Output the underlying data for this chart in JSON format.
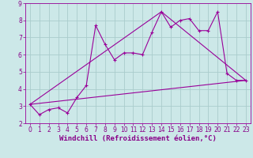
{
  "background_color": "#cce8e8",
  "grid_color": "#aacccc",
  "line_color": "#990099",
  "xlabel": "Windchill (Refroidissement éolien,°C)",
  "xlim": [
    -0.5,
    23.5
  ],
  "ylim": [
    2,
    9
  ],
  "yticks": [
    2,
    3,
    4,
    5,
    6,
    7,
    8,
    9
  ],
  "xticks": [
    0,
    1,
    2,
    3,
    4,
    5,
    6,
    7,
    8,
    9,
    10,
    11,
    12,
    13,
    14,
    15,
    16,
    17,
    18,
    19,
    20,
    21,
    22,
    23
  ],
  "main_line_x": [
    0,
    1,
    2,
    3,
    4,
    5,
    6,
    7,
    8,
    9,
    10,
    11,
    12,
    13,
    14,
    15,
    16,
    17,
    18,
    19,
    20,
    21,
    22,
    23
  ],
  "main_line_y": [
    3.1,
    2.5,
    2.8,
    2.9,
    2.6,
    3.5,
    4.2,
    7.7,
    6.6,
    5.7,
    6.1,
    6.1,
    6.0,
    7.3,
    8.5,
    7.6,
    8.0,
    8.1,
    7.4,
    7.4,
    8.5,
    4.9,
    4.5,
    4.5
  ],
  "line2_x": [
    0,
    23
  ],
  "line2_y": [
    3.1,
    4.5
  ],
  "line3_x": [
    0,
    14,
    23
  ],
  "line3_y": [
    3.1,
    8.5,
    4.5
  ],
  "font_color": "#880088",
  "tick_labelsize": 5.5,
  "xlabel_fontsize": 6.5
}
